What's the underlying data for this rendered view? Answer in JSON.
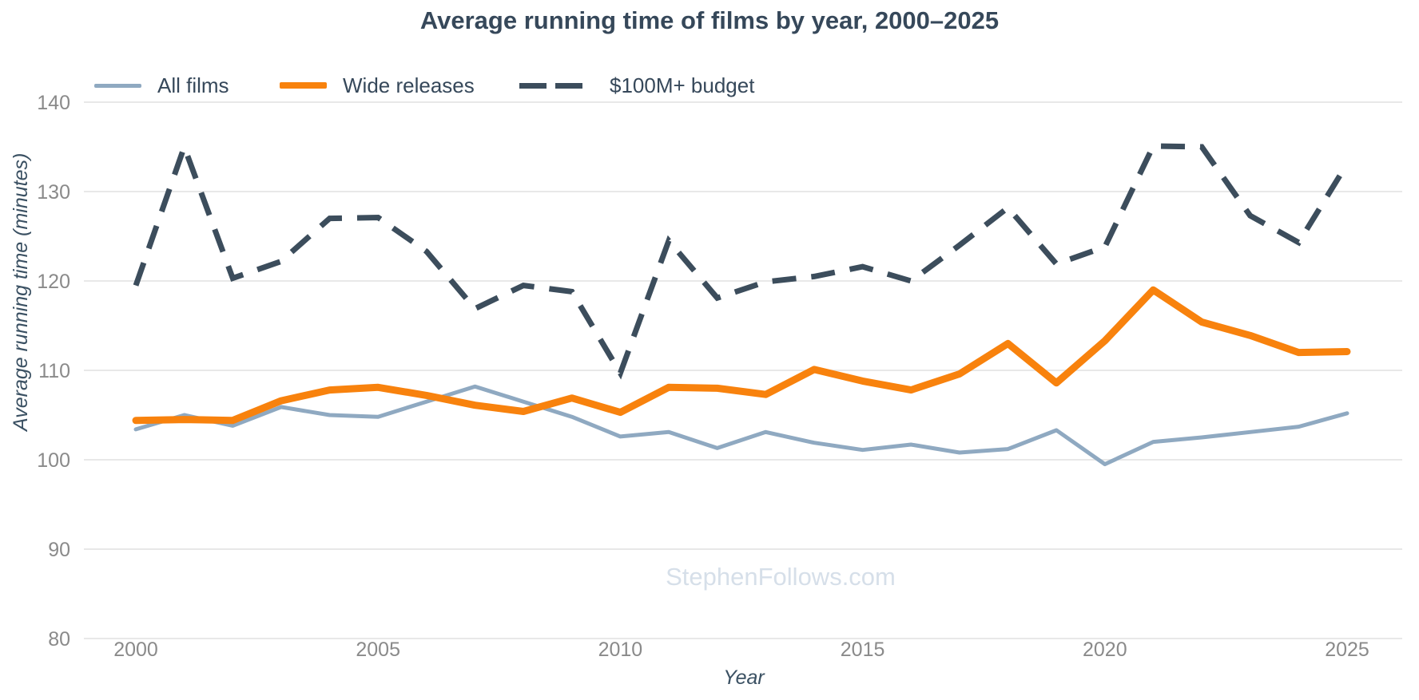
{
  "chart_data": {
    "type": "line",
    "title": "Average running time of films by year, 2000–2025",
    "xlabel": "Year",
    "ylabel": "Average running time (minutes)",
    "watermark": "StephenFollows.com",
    "x": [
      2000,
      2001,
      2002,
      2003,
      2004,
      2005,
      2006,
      2007,
      2008,
      2009,
      2010,
      2011,
      2012,
      2013,
      2014,
      2015,
      2016,
      2017,
      2018,
      2019,
      2020,
      2021,
      2022,
      2023,
      2024,
      2025
    ],
    "x_ticks": [
      2000,
      2005,
      2010,
      2015,
      2020,
      2025
    ],
    "y_ticks": [
      140,
      130,
      120,
      110,
      100,
      90,
      80
    ],
    "xlim": [
      2000,
      2025
    ],
    "ylim": [
      80,
      141
    ],
    "grid": "horizontal-only",
    "legend_position": "top-left",
    "series": [
      {
        "name": "All films",
        "color": "#8FA9C1",
        "dash": false,
        "width": 5,
        "values": [
          103.4,
          105.0,
          103.8,
          105.9,
          105.0,
          104.8,
          106.5,
          108.2,
          106.5,
          104.8,
          102.6,
          103.1,
          101.3,
          103.1,
          101.9,
          101.1,
          101.7,
          100.8,
          101.2,
          103.3,
          99.5,
          102.0,
          102.5,
          103.1,
          103.7,
          105.2
        ]
      },
      {
        "name": "Wide releases",
        "color": "#F8820D",
        "dash": false,
        "width": 9,
        "values": [
          104.4,
          104.5,
          104.4,
          106.6,
          107.8,
          108.1,
          107.2,
          106.1,
          105.4,
          106.9,
          105.3,
          108.1,
          108.0,
          107.3,
          110.1,
          108.8,
          107.8,
          109.6,
          113.0,
          108.6,
          113.3,
          119.0,
          115.4,
          113.9,
          112.0,
          112.1
        ]
      },
      {
        "name": "$100M+ budget",
        "color": "#3C4D5C",
        "dash": true,
        "width": 7,
        "values": [
          119.5,
          135.0,
          120.3,
          122.2,
          127.0,
          127.1,
          123.3,
          116.9,
          119.5,
          118.8,
          109.7,
          124.5,
          118.1,
          119.9,
          120.5,
          121.6,
          120.0,
          124.0,
          128.2,
          121.9,
          123.8,
          135.1,
          135.0,
          127.3,
          124.3,
          133.1
        ]
      }
    ],
    "tick_color": "#8A8A8A",
    "grid_color": "#E8E8E8"
  }
}
